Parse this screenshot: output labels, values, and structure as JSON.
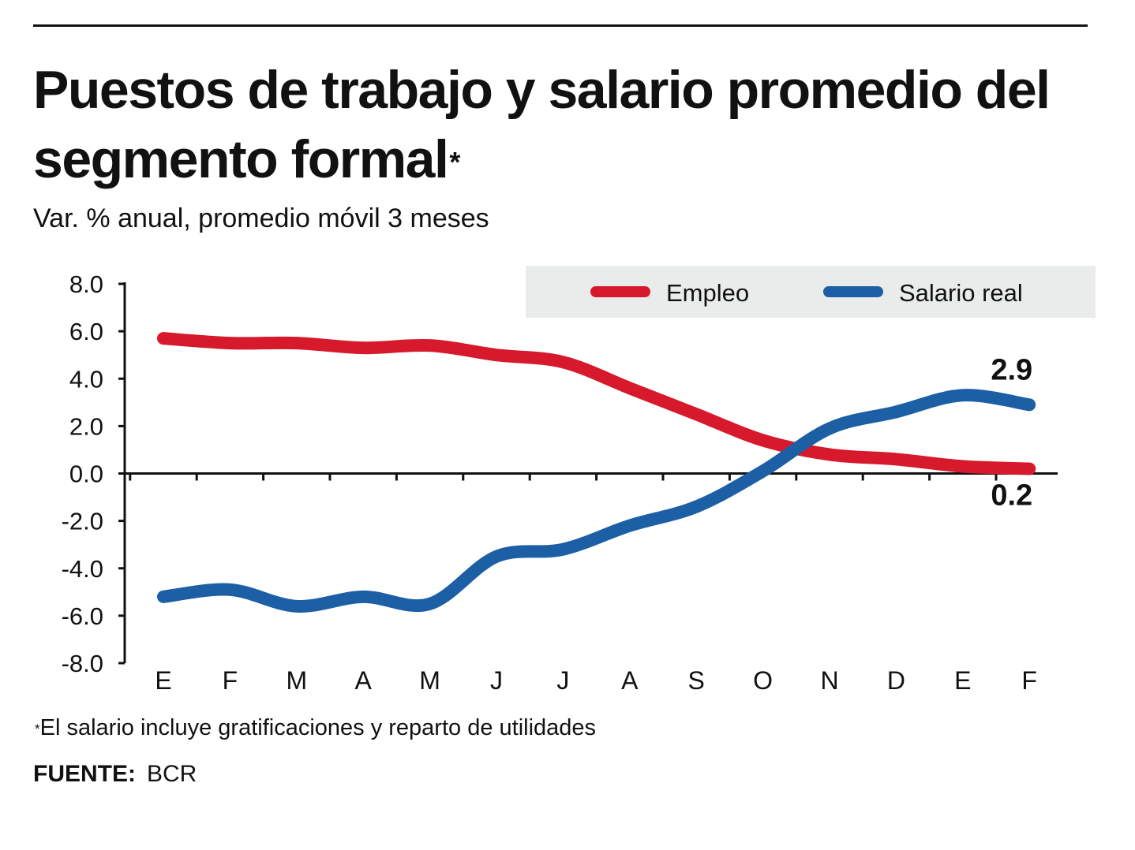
{
  "header": {
    "title": "Puestos de trabajo y salario promedio del segmento formal",
    "title_mark": "*",
    "subtitle": "Var. % anual, promedio móvil 3 meses"
  },
  "chart_data": {
    "type": "line",
    "title": "Puestos de trabajo y salario promedio del segmento formal",
    "subtitle": "Var. % anual, promedio móvil 3 meses",
    "categories": [
      "E",
      "F",
      "M",
      "A",
      "M",
      "J",
      "J",
      "A",
      "S",
      "O",
      "N",
      "D",
      "E",
      "F"
    ],
    "ylim": [
      -8,
      8
    ],
    "yticks": [
      8.0,
      6.0,
      4.0,
      2.0,
      0.0,
      -2.0,
      -4.0,
      -6.0,
      -8.0
    ],
    "ytick_labels": [
      "8.0",
      "6.0",
      "4.0",
      "2.0",
      "0.0",
      "-2.0",
      "-4.0",
      "-6.0",
      "-8.0"
    ],
    "legend_position": "top-right",
    "series": [
      {
        "name": "Empleo",
        "color": "#d7192c",
        "values": [
          5.7,
          5.5,
          5.5,
          5.3,
          5.4,
          5.0,
          4.7,
          3.6,
          2.5,
          1.4,
          0.8,
          0.6,
          0.3,
          0.2
        ]
      },
      {
        "name": "Salario real",
        "color": "#1d5fa5",
        "values": [
          -5.2,
          -4.9,
          -5.6,
          -5.2,
          -5.5,
          -3.5,
          -3.2,
          -2.2,
          -1.4,
          0.1,
          1.9,
          2.6,
          3.3,
          2.9
        ]
      }
    ],
    "annotations": [
      {
        "text": "2.9",
        "series": "Salario real",
        "x": "F"
      },
      {
        "text": "0.2",
        "series": "Empleo",
        "x": "F"
      }
    ]
  },
  "footnote": {
    "mark": "*",
    "text": "El salario incluye gratificaciones y reparto de utilidades"
  },
  "source": {
    "label": "FUENTE:",
    "value": "BCR"
  },
  "colors": {
    "text": "#111111",
    "axis": "#111111",
    "legend_bg": "#e9ecea",
    "empleo": "#d7192c",
    "salario": "#1d5fa5"
  }
}
